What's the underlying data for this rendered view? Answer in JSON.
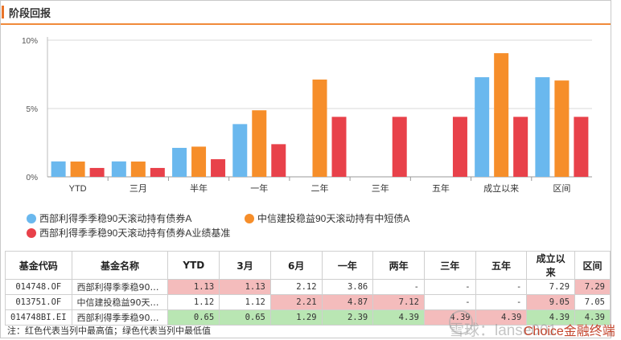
{
  "header": {
    "title": "阶段回报"
  },
  "chart_data": {
    "type": "bar",
    "categories": [
      "YTD",
      "三月",
      "半年",
      "一年",
      "二年",
      "三年",
      "五年",
      "成立以来",
      "区间"
    ],
    "ylim": [
      0,
      10
    ],
    "yticks": [
      "0%",
      "5%",
      "10%"
    ],
    "series": [
      {
        "name": "西部利得季季稳90天滚动持有债券A",
        "color": "#6ab8ee",
        "values": [
          1.13,
          1.13,
          2.12,
          3.86,
          null,
          null,
          null,
          7.29,
          7.29
        ]
      },
      {
        "name": "中信建投稳益90天滚动持有中短债A",
        "color": "#f68e2a",
        "values": [
          1.12,
          1.12,
          2.21,
          4.87,
          7.12,
          null,
          null,
          9.05,
          7.05
        ]
      },
      {
        "name": "西部利得季季稳90天滚动持有债券A业绩基准",
        "color": "#e8414a",
        "values": [
          0.65,
          0.65,
          1.29,
          2.39,
          4.39,
          4.39,
          4.39,
          4.39,
          4.39
        ]
      }
    ]
  },
  "table": {
    "headers": [
      "基金代码",
      "基金名称",
      "YTD",
      "3月",
      "6月",
      "一年",
      "两年",
      "三年",
      "五年",
      "成立以来",
      "区间"
    ],
    "rows": [
      {
        "code": "014748.OF",
        "name": "西部利得季季稳90…",
        "values": [
          "1.13",
          "1.13",
          "2.12",
          "3.86",
          "-",
          "-",
          "-",
          "7.29",
          "7.29"
        ],
        "marks": [
          "hi",
          "hi",
          "",
          "",
          "",
          "",
          "",
          "",
          "hi"
        ]
      },
      {
        "code": "013751.OF",
        "name": "中信建投稳益90天…",
        "values": [
          "1.12",
          "1.12",
          "2.21",
          "4.87",
          "7.12",
          "-",
          "-",
          "9.05",
          "7.05"
        ],
        "marks": [
          "",
          "",
          "hi",
          "hi",
          "hi",
          "",
          "",
          "hi",
          ""
        ]
      },
      {
        "code": "014748BI.EI",
        "name": "西部利得季季稳90…",
        "values": [
          "0.65",
          "0.65",
          "1.29",
          "2.39",
          "4.39",
          "4.39",
          "4.39",
          "4.39",
          "4.39"
        ],
        "marks": [
          "lo",
          "lo",
          "lo",
          "lo",
          "lo",
          "hi",
          "hi",
          "lo",
          "lo"
        ]
      }
    ]
  },
  "note": "注：红色代表当列中最高值；绿色代表当列中最低值",
  "watermark": "雪球：lanse001",
  "brand": "Choice金融终端"
}
